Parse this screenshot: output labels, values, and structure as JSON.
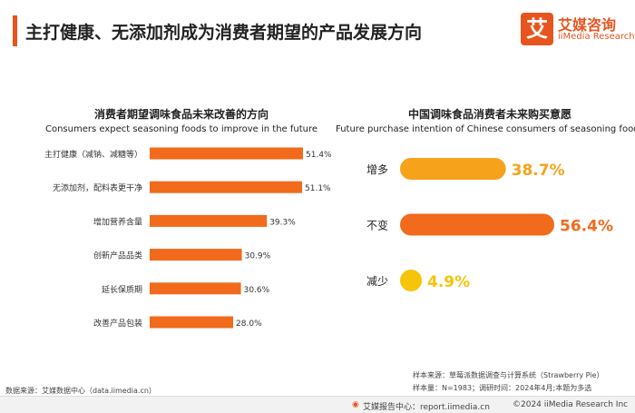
{
  "page": {
    "title": "主打健康、无添加剂成为消费者期望的产品发展方向"
  },
  "logo": {
    "mark": "艾",
    "cn": "艾媒咨询",
    "en": "iiMedia Research"
  },
  "chart_data": [
    {
      "type": "bar",
      "orientation": "horizontal",
      "title": "消费者期望调味食品未来改善的方向",
      "subtitle": "Consumers expect seasoning foods to improve in the future",
      "categories": [
        "主打健康（减钠、减糖等）",
        "无添加剂，配料表更干净",
        "增加营养含量",
        "创新产品品类",
        "延长保质期",
        "改善产品包装"
      ],
      "values": [
        51.4,
        51.1,
        39.3,
        30.9,
        30.6,
        28.0
      ],
      "value_labels": [
        "51.4%",
        "51.1%",
        "39.3%",
        "30.9%",
        "30.6%",
        "28.0%"
      ],
      "unit": "%",
      "xlim": [
        0,
        60
      ],
      "color": "#f26a1b",
      "grid": false
    },
    {
      "type": "bar",
      "orientation": "horizontal",
      "style": "rounded",
      "title": "中国调味食品消费者未来购买意愿",
      "subtitle": "Future purchase intention of Chinese consumers of seasoning food",
      "categories": [
        "增多",
        "不变",
        "减少"
      ],
      "values": [
        38.7,
        56.4,
        4.9
      ],
      "value_labels": [
        "38.7%",
        "56.4%",
        "4.9%"
      ],
      "unit": "%",
      "xlim": [
        0,
        60
      ],
      "colors": [
        "#f6a21b",
        "#f26a1b",
        "#f6c40b"
      ],
      "label_colors": [
        "#f6a21b",
        "#f26a1b",
        "#f6c40b"
      ],
      "grid": false
    }
  ],
  "footer": {
    "data_source": "数据来源：艾媒数据中心（data.iimedia.cn）",
    "sample_source": "样本来源：草莓派数据调查与计算系统（Strawberry Pie）",
    "sample_info": "样本量：N=1983；调研时间：2024年4月;本题为多选",
    "report_center": "艾媒报告中心：report.iimedia.cn",
    "copyright": "©2024  iiMedia Research Inc"
  }
}
